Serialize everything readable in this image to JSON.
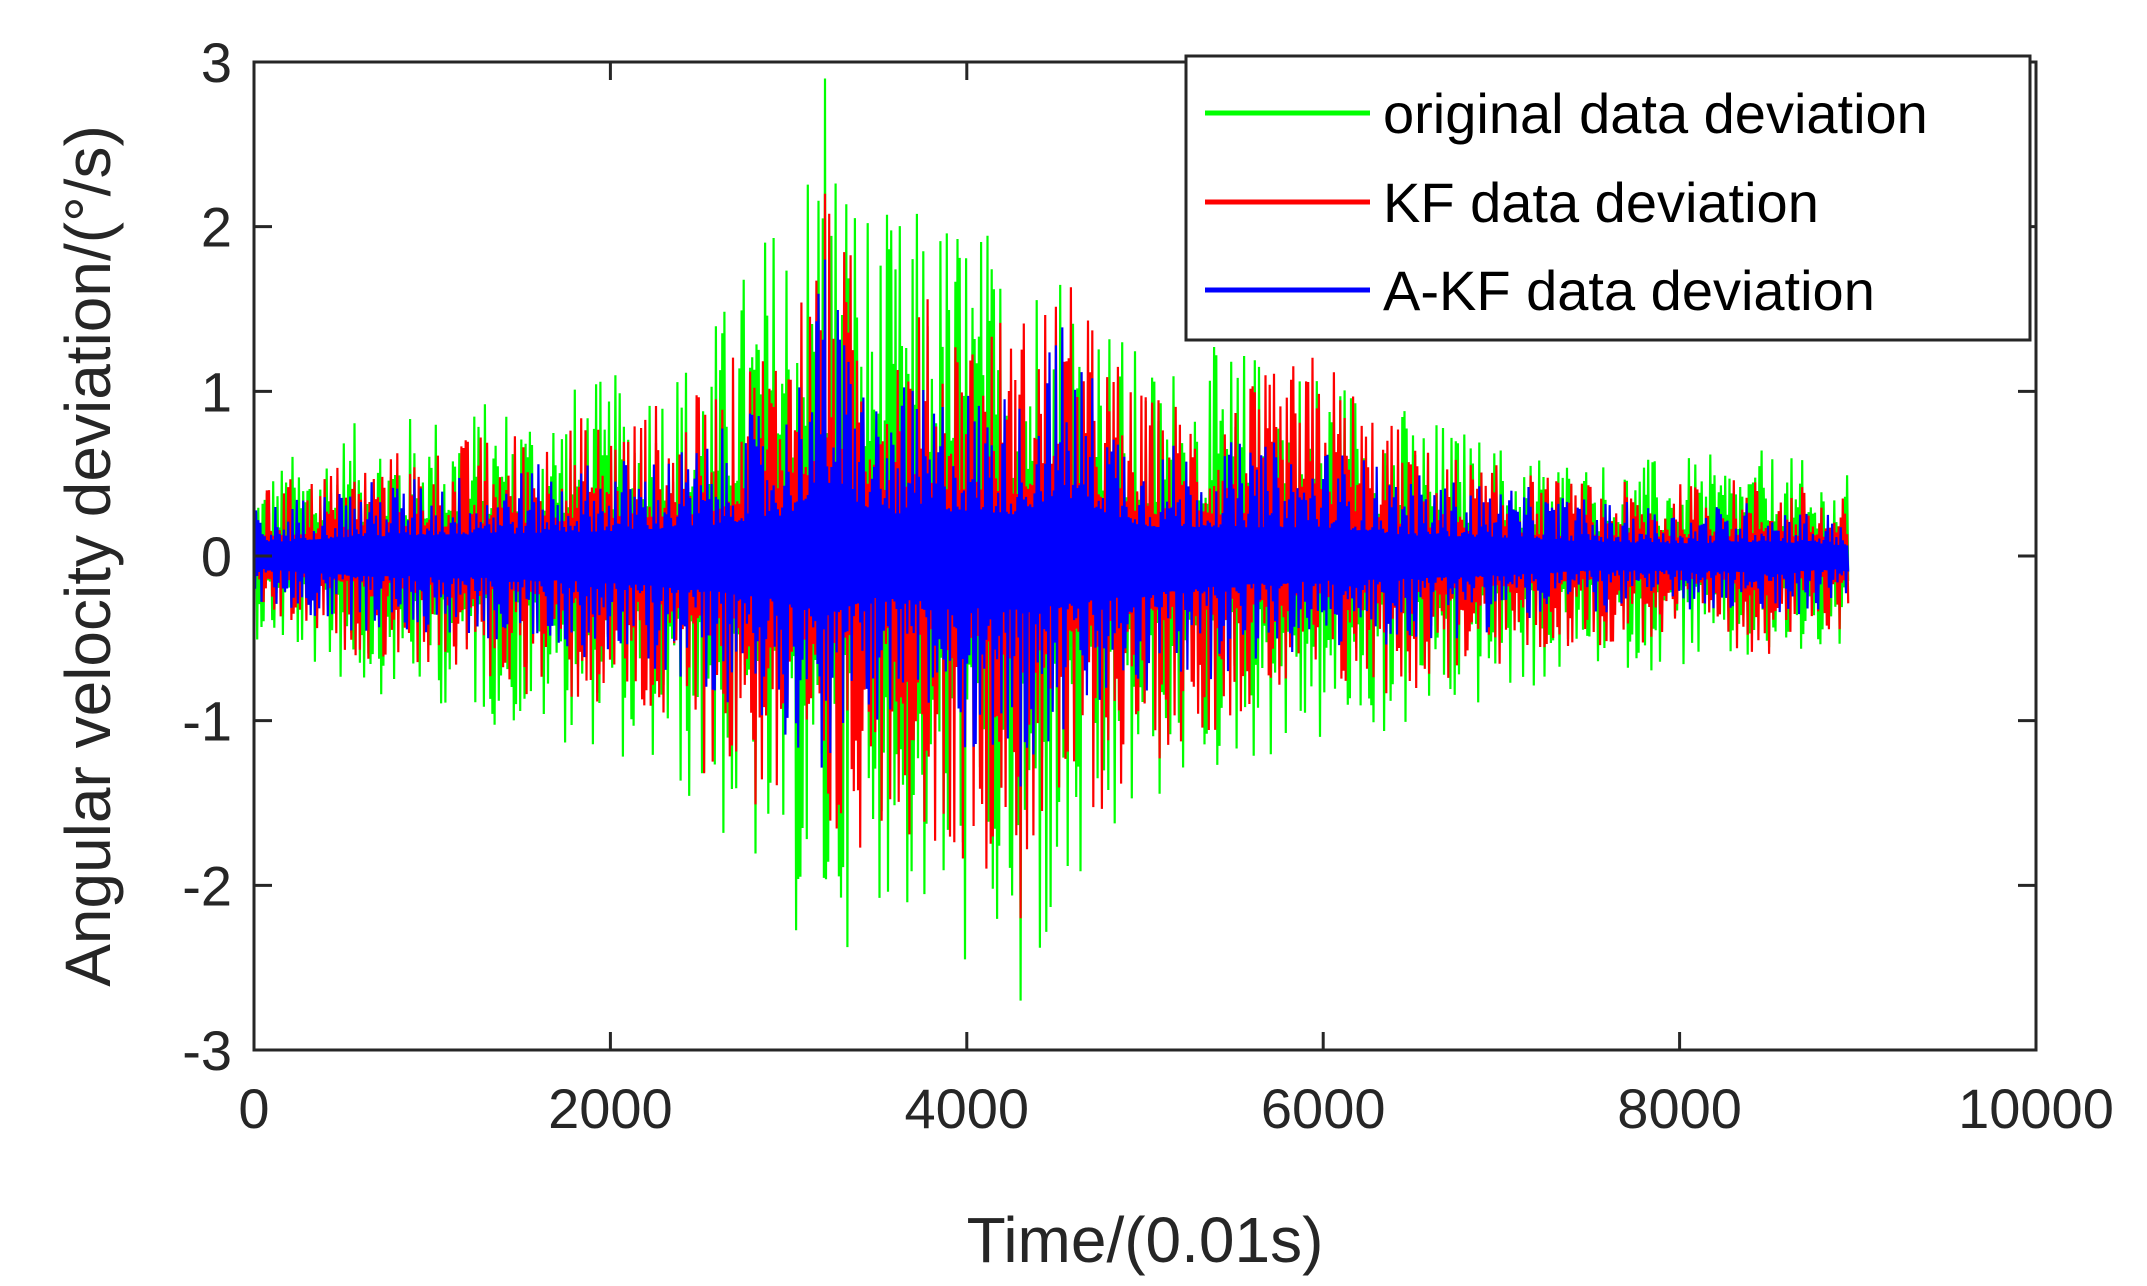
{
  "chart_data": {
    "type": "line",
    "title": "",
    "xlabel": "Time/(0.01s)",
    "ylabel": "Angular velocity deviation/(°/s)",
    "xlim": [
      0,
      10000
    ],
    "ylim": [
      -3,
      3
    ],
    "xticks": [
      0,
      2000,
      4000,
      6000,
      8000,
      10000
    ],
    "yticks": [
      -3,
      -2,
      -1,
      0,
      1,
      2,
      3
    ],
    "xtick_labels": [
      "0",
      "2000",
      "4000",
      "6000",
      "8000",
      "10000"
    ],
    "ytick_labels": [
      "-3",
      "-2",
      "-1",
      "0",
      "1",
      "2",
      "3"
    ],
    "grid": false,
    "legend_position": "top-right",
    "x_end": 8950,
    "envelope_x": [
      0,
      500,
      1000,
      1500,
      2000,
      2500,
      3000,
      3200,
      3500,
      4000,
      4300,
      4500,
      5000,
      5500,
      6000,
      6500,
      7000,
      7500,
      8000,
      8500,
      8950
    ],
    "series": [
      {
        "name": "original data deviation",
        "color": "#00ff00",
        "envelope_upper": [
          0.5,
          0.8,
          0.9,
          1.0,
          1.1,
          1.3,
          2.3,
          2.9,
          2.1,
          2.2,
          1.8,
          2.0,
          1.2,
          1.3,
          1.2,
          0.9,
          0.7,
          0.6,
          0.6,
          0.65,
          0.5
        ],
        "envelope_lower": [
          -0.5,
          -0.8,
          -0.9,
          -1.1,
          -1.2,
          -1.6,
          -2.3,
          -2.6,
          -2.1,
          -2.6,
          -2.7,
          -2.6,
          -1.6,
          -1.3,
          -1.2,
          -1.1,
          -0.9,
          -0.7,
          -0.7,
          -0.7,
          -0.6
        ],
        "peak_max": 2.9,
        "peak_min": -2.7
      },
      {
        "name": "KF data deviation",
        "color": "#ff0000",
        "envelope_upper": [
          0.4,
          0.6,
          0.7,
          0.8,
          0.9,
          1.0,
          1.6,
          2.2,
          1.6,
          1.6,
          1.5,
          1.8,
          1.0,
          1.0,
          1.3,
          0.7,
          0.55,
          0.45,
          0.45,
          0.5,
          0.35
        ],
        "envelope_lower": [
          -0.4,
          -0.6,
          -0.7,
          -0.85,
          -1.0,
          -1.3,
          -1.8,
          -2.2,
          -1.6,
          -1.9,
          -1.9,
          -1.9,
          -1.3,
          -1.0,
          -0.9,
          -0.85,
          -0.7,
          -0.55,
          -0.55,
          -0.6,
          -0.45
        ],
        "peak_max": 2.2,
        "peak_min": -2.2
      },
      {
        "name": "A-KF data deviation",
        "color": "#0000ff",
        "envelope_upper": [
          0.3,
          0.45,
          0.5,
          0.55,
          0.6,
          0.7,
          1.0,
          1.8,
          1.0,
          1.1,
          1.0,
          1.5,
          0.7,
          0.7,
          0.7,
          0.5,
          0.45,
          0.35,
          0.3,
          0.35,
          0.25
        ],
        "envelope_lower": [
          -0.3,
          -0.45,
          -0.5,
          -0.55,
          -0.65,
          -0.8,
          -1.1,
          -1.4,
          -1.0,
          -1.2,
          -1.3,
          -1.2,
          -0.9,
          -0.7,
          -0.6,
          -0.55,
          -0.45,
          -0.35,
          -0.35,
          -0.4,
          -0.3
        ],
        "peak_max": 1.8,
        "peak_min": -1.4
      }
    ]
  }
}
